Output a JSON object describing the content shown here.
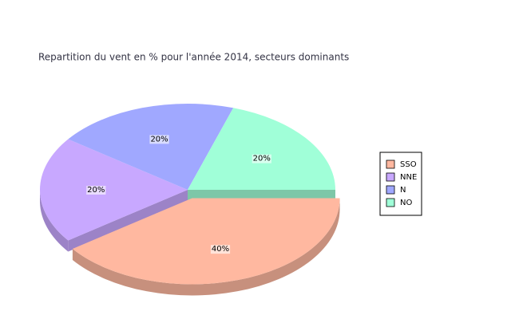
{
  "chart_data": {
    "type": "pie",
    "title": "Repartition du vent en % pour l'année 2014, secteurs dominants",
    "categories": [
      "SSO",
      "NNE",
      "N",
      "NO"
    ],
    "values": [
      40,
      20,
      20,
      20
    ],
    "value_labels": [
      "40%",
      "20%",
      "20%",
      "20%"
    ],
    "colors": [
      "#ffb8a0",
      "#c8a8ff",
      "#a0a8ff",
      "#a0ffd8"
    ],
    "exploded": [
      true,
      false,
      false,
      false
    ]
  }
}
